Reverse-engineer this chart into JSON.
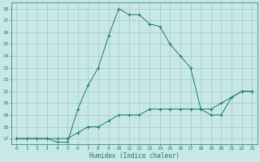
{
  "xlabel": "Humidex (Indice chaleur)",
  "ylabel": "",
  "x_values": [
    0,
    1,
    2,
    3,
    4,
    5,
    6,
    7,
    8,
    9,
    10,
    11,
    12,
    13,
    14,
    15,
    16,
    17,
    18,
    19,
    20,
    21,
    22,
    23
  ],
  "line1_y": [
    17,
    17,
    17,
    17,
    17,
    17,
    17.5,
    18,
    18,
    18.5,
    19,
    19,
    19,
    19.5,
    19.5,
    19.5,
    19.5,
    19.5,
    19.5,
    19.5,
    20,
    20.5,
    21,
    21
  ],
  "line2_y": [
    17,
    17,
    17,
    17,
    16.7,
    16.7,
    19.5,
    21.5,
    23,
    25.7,
    28,
    27.5,
    27.5,
    26.7,
    26.5,
    25,
    24,
    23,
    19.5,
    19,
    19,
    20.5,
    21,
    21
  ],
  "line_color": "#1a7a6e",
  "bg_color": "#c8e8e8",
  "grid_color": "#a0c8c8",
  "ylim": [
    16.5,
    28.5
  ],
  "xlim": [
    -0.5,
    23.5
  ],
  "yticks": [
    17,
    18,
    19,
    20,
    21,
    22,
    23,
    24,
    25,
    26,
    27,
    28
  ],
  "xticks": [
    0,
    1,
    2,
    3,
    4,
    5,
    6,
    7,
    8,
    9,
    10,
    11,
    12,
    13,
    14,
    15,
    16,
    17,
    18,
    19,
    20,
    21,
    22,
    23
  ]
}
